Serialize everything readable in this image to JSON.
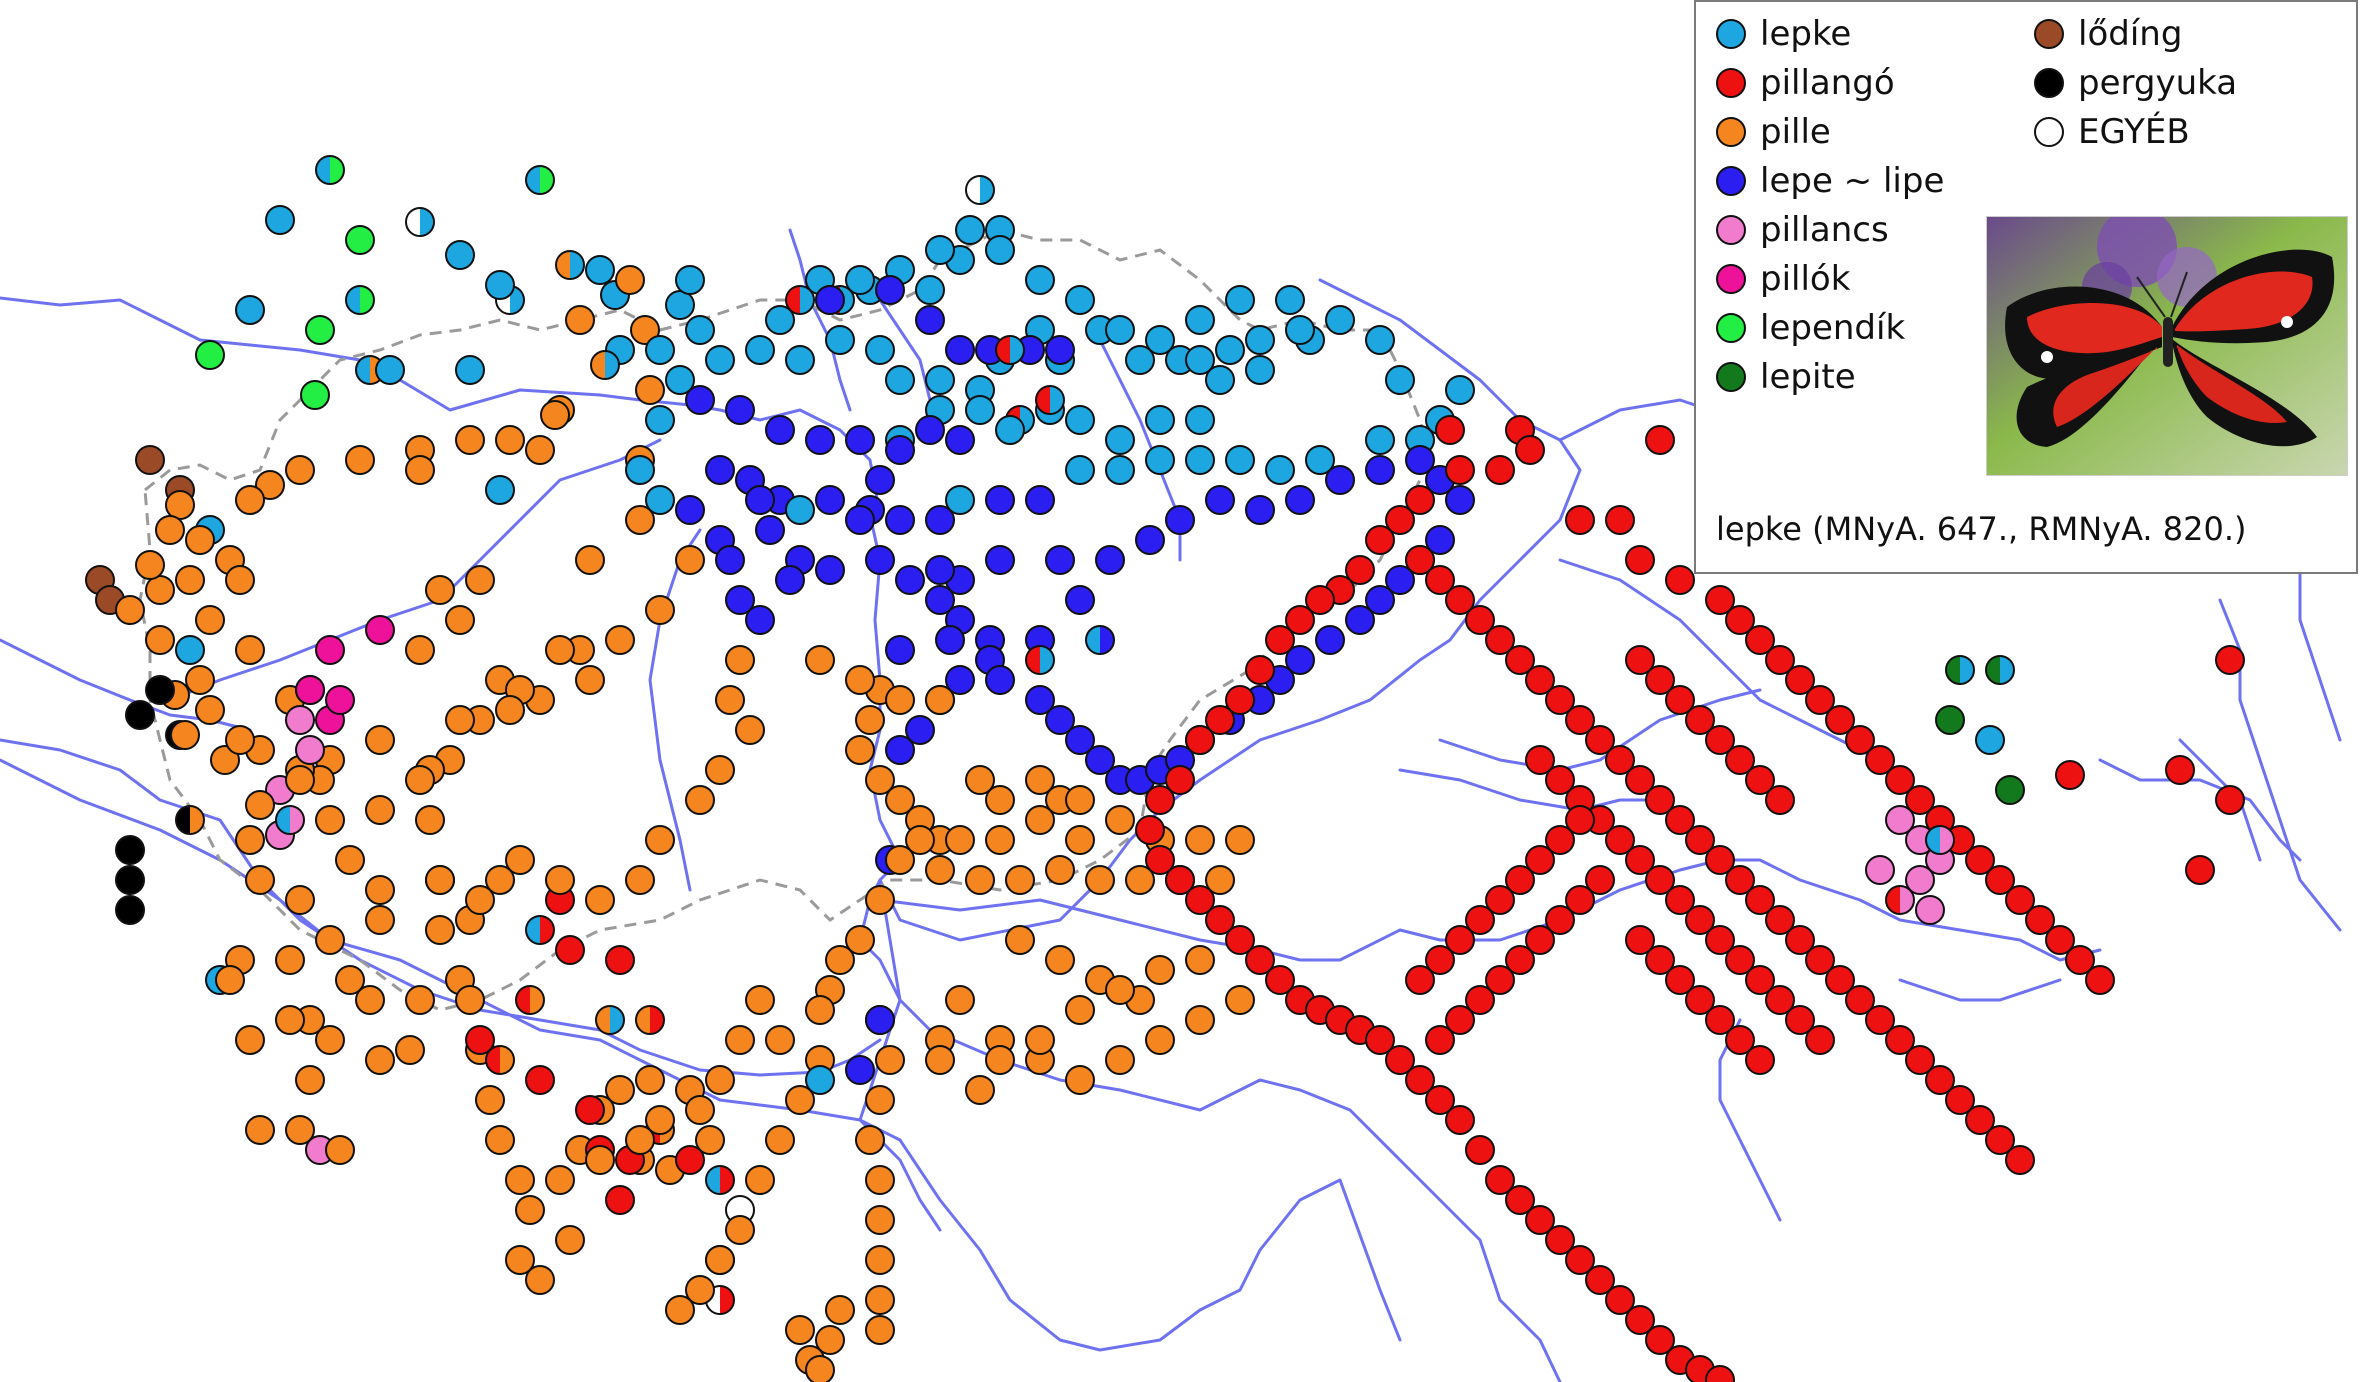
{
  "categories": [
    {
      "key": "lepke",
      "label": "lepke",
      "color": "#1ea6e0"
    },
    {
      "key": "pillango",
      "label": "pillangó",
      "color": "#ee1111"
    },
    {
      "key": "pille",
      "label": "pille",
      "color": "#f5861f"
    },
    {
      "key": "lepe",
      "label": "lepe ~ lipe",
      "color": "#2a1ef0"
    },
    {
      "key": "pillancs",
      "label": "pillancs",
      "color": "#f17ccd"
    },
    {
      "key": "pillok",
      "label": "pillók",
      "color": "#ee1199"
    },
    {
      "key": "lependik",
      "label": "lependík",
      "color": "#22ee44"
    },
    {
      "key": "lepite",
      "label": "lepite",
      "color": "#127a1c"
    },
    {
      "key": "loding",
      "label": "lődíng",
      "color": "#9a4a26"
    },
    {
      "key": "pergyuka",
      "label": "pergyuka",
      "color": "#000000"
    },
    {
      "key": "egyeb",
      "label": "EGYÉB",
      "color": "#ffffff"
    }
  ],
  "caption": "lepke (MNyA. 647., RMNyA. 820.)",
  "colors": {
    "river": "#6e72f0",
    "border": "#9a9a9a",
    "dot_outline": "#111111",
    "legend_border": "#7a7a7a"
  },
  "icons": {
    "photo": "butterfly-photo"
  }
}
